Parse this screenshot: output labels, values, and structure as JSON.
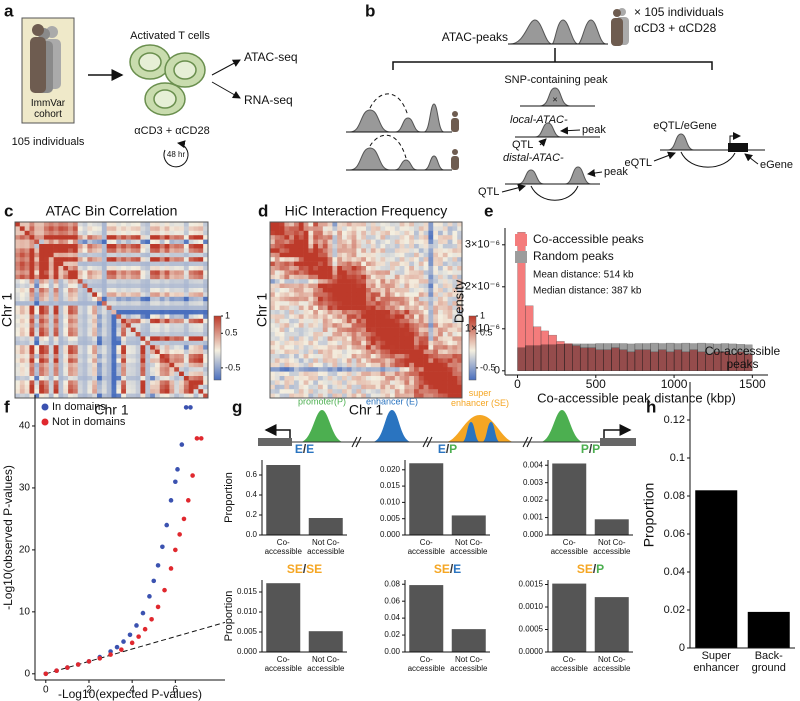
{
  "panel_labels": [
    "a",
    "b",
    "c",
    "d",
    "e",
    "f",
    "g",
    "h"
  ],
  "a": {
    "cohort": "ImmVar\ncohort",
    "individuals": "105 individuals",
    "cells": "Activated T cells",
    "atac": "ATAC-seq",
    "rna": "RNA-seq",
    "stim": "αCD3 + αCD28",
    "time": "48 hr"
  },
  "b": {
    "peaks": "ATAC-peaks",
    "individuals": "× 105 individuals",
    "stim": "αCD3 + αCD28",
    "snp": "SNP-containing peak",
    "local": "local-ATAC-",
    "local_qtl": "QTL",
    "local_peak": "peak",
    "distal": "distal-ATAC-",
    "distal_qtl": "QTL",
    "distal_peak": "peak",
    "eqtl_title": "eQTL/eGene",
    "eqtl": "eQTL",
    "egene": "eGene"
  },
  "g_diagram": {
    "promoter": "promoter(P)",
    "enhancer": "enhancer (E)",
    "super_enhancer": "super\nenhancer (SE)"
  },
  "chart_data": [
    {
      "type": "heatmap",
      "title": "ATAC Bin Correlation",
      "xlabel": "Chr 1",
      "ylabel": "Chr 1",
      "clim": [
        -0.85,
        1
      ],
      "cticks": [
        1,
        0.5,
        -0.5
      ]
    },
    {
      "type": "heatmap",
      "title": "HiC Interaction Frequency",
      "xlabel": "Chr 1",
      "ylabel": "Chr 1",
      "clim": [
        -0.85,
        1
      ],
      "cticks": [
        1,
        0.5,
        -0.5
      ]
    },
    {
      "type": "histogram",
      "xlabel": "Co-accessible peak distance (kbp)",
      "ylabel": "Density",
      "bins": [
        0,
        50,
        100,
        150,
        200,
        250,
        300,
        350,
        400,
        450,
        500,
        550,
        600,
        650,
        700,
        750,
        800,
        850,
        900,
        950,
        1000,
        1050,
        1100,
        1150,
        1200,
        1250,
        1300,
        1350,
        1400,
        1450,
        1500
      ],
      "series": [
        {
          "name": "Co-accessible peaks",
          "color": "#f47c7c",
          "values": [
            3.3e-06,
            1.55e-06,
            1.05e-06,
            9.5e-07,
            8.5e-07,
            7e-07,
            6.5e-07,
            6e-07,
            5.5e-07,
            5.5e-07,
            5e-07,
            5e-07,
            5.5e-07,
            5e-07,
            4.5e-07,
            5e-07,
            5e-07,
            4.5e-07,
            5e-07,
            4.5e-07,
            5e-07,
            4.5e-07,
            5e-07,
            4.5e-07,
            4e-07,
            4.5e-07,
            4.5e-07,
            4e-07,
            4.5e-07,
            4e-07
          ]
        },
        {
          "name": "Random peaks",
          "color": "#9c9c9c",
          "values": [
            5.5e-07,
            6e-07,
            6e-07,
            6.2e-07,
            6.2e-07,
            6.3e-07,
            6.3e-07,
            6.4e-07,
            6.4e-07,
            6.4e-07,
            6.5e-07,
            6.5e-07,
            6.5e-07,
            6.5e-07,
            6.4e-07,
            6.5e-07,
            6.5e-07,
            6.6e-07,
            6.5e-07,
            6.6e-07,
            6.5e-07,
            6.6e-07,
            6.5e-07,
            6.6e-07,
            6.5e-07,
            6.4e-07,
            6.5e-07,
            6.4e-07,
            6.3e-07,
            6.2e-07
          ]
        }
      ],
      "annotations": [
        "Mean distance: 514 kb",
        "Median distance: 387 kb"
      ],
      "xlim": [
        -80,
        1600
      ],
      "ylim": [
        -1e-07,
        3.4e-06
      ],
      "xticks": [
        0,
        500,
        1000,
        1500
      ],
      "yticks": [
        0,
        {
          "value": 1e-06,
          "label": "1×10⁻⁶"
        },
        {
          "value": 2e-06,
          "label": "2×10⁻⁶"
        },
        {
          "value": 3e-06,
          "label": "3×10⁻⁶"
        }
      ],
      "legend": "upper left"
    },
    {
      "type": "scatter",
      "xlabel": "-Log10(expected P-values)",
      "ylabel": "-Log10(observed P-values)",
      "xlim": [
        -0.5,
        8.3
      ],
      "ylim": [
        -1,
        45
      ],
      "xticks": [
        0,
        2,
        4,
        6
      ],
      "yticks": [
        0,
        10,
        20,
        30,
        40
      ],
      "diagonal": true,
      "legend": "upper left",
      "series": [
        {
          "name": "In domains",
          "color": "#3b52b0",
          "x": [
            0,
            0.5,
            1,
            1.5,
            2,
            2.5,
            3,
            3.3,
            3.6,
            3.9,
            4.2,
            4.5,
            4.8,
            5,
            5.2,
            5.4,
            5.6,
            5.8,
            6,
            6.1,
            6.3,
            6.5,
            6.7
          ],
          "y": [
            0,
            0.5,
            1,
            1.5,
            2,
            2.7,
            3.6,
            4.3,
            5.2,
            6.3,
            7.8,
            9.8,
            12.5,
            15,
            17.5,
            20.5,
            24,
            28,
            31,
            33,
            37,
            43,
            43
          ]
        },
        {
          "name": "Not in domains",
          "color": "#e0282e",
          "x": [
            0,
            0.5,
            1,
            1.5,
            2,
            2.5,
            3,
            3.5,
            4,
            4.3,
            4.6,
            4.9,
            5.2,
            5.5,
            5.8,
            6,
            6.2,
            6.4,
            6.6,
            6.8,
            7,
            7.2
          ],
          "y": [
            0,
            0.5,
            1,
            1.5,
            2,
            2.5,
            3.1,
            3.9,
            5,
            6,
            7.2,
            8.8,
            10.8,
            13.5,
            17,
            20,
            22.5,
            25,
            28,
            32,
            38,
            38
          ]
        }
      ]
    },
    {
      "type": "bar",
      "title": [
        "E",
        "/",
        "E"
      ],
      "title_colors": [
        "#2a74c0",
        "#333333",
        "#2a74c0"
      ],
      "ylabel": "Proportion",
      "categories": [
        "Co-\naccessible",
        "Not Co-\naccessible"
      ],
      "values": [
        0.7,
        0.17
      ],
      "color": "#555555",
      "ylim": [
        0,
        0.75
      ],
      "yticks": [
        {
          "value": 0,
          "label": "0.0"
        },
        0.2,
        0.4,
        0.6
      ]
    },
    {
      "type": "bar",
      "title": [
        "E",
        "/",
        "P"
      ],
      "title_colors": [
        "#2a74c0",
        "#333333",
        "#4caf50"
      ],
      "categories": [
        "Co-\naccessible",
        "Not Co-\naccessible"
      ],
      "values": [
        0.022,
        0.006
      ],
      "color": "#555555",
      "ylim": [
        0,
        0.023
      ],
      "yticks": [
        {
          "value": 0,
          "label": "0.000"
        },
        0.005,
        {
          "value": 0.01,
          "label": "0.010"
        },
        0.015,
        {
          "value": 0.02,
          "label": "0.020"
        }
      ]
    },
    {
      "type": "bar",
      "title": [
        "P",
        "/",
        "P"
      ],
      "title_colors": [
        "#4caf50",
        "#333333",
        "#4caf50"
      ],
      "categories": [
        "Co-\naccessible",
        "Not Co-\naccessible"
      ],
      "values": [
        0.0041,
        0.0009
      ],
      "color": "#555555",
      "ylim": [
        0,
        0.0043
      ],
      "yticks": [
        {
          "value": 0,
          "label": "0.000"
        },
        0.001,
        0.002,
        0.003,
        0.004
      ]
    },
    {
      "type": "bar",
      "title": [
        "SE",
        "/",
        "SE"
      ],
      "title_colors": [
        "#f5a623",
        "#333333",
        "#f5a623"
      ],
      "ylabel": "Proportion",
      "categories": [
        "Co-\naccessible",
        "Not Co-\naccessible"
      ],
      "values": [
        0.0172,
        0.0052
      ],
      "color": "#555555",
      "ylim": [
        0,
        0.018
      ],
      "yticks": [
        {
          "value": 0,
          "label": "0.000"
        },
        0.005,
        {
          "value": 0.01,
          "label": "0.010"
        },
        0.015
      ]
    },
    {
      "type": "bar",
      "title": [
        "SE",
        "/",
        "E"
      ],
      "title_colors": [
        "#f5a623",
        "#333333",
        "#2a74c0"
      ],
      "categories": [
        "Co-\naccessible",
        "Not Co-\naccessible"
      ],
      "values": [
        0.079,
        0.027
      ],
      "color": "#555555",
      "ylim": [
        0,
        0.085
      ],
      "yticks": [
        {
          "value": 0,
          "label": "0.00"
        },
        0.02,
        0.04,
        0.06,
        0.08
      ]
    },
    {
      "type": "bar",
      "title": [
        "SE",
        "/",
        "P"
      ],
      "title_colors": [
        "#f5a623",
        "#333333",
        "#4caf50"
      ],
      "categories": [
        "Co-\naccessible",
        "Not Co-\naccessible"
      ],
      "values": [
        0.00152,
        0.00122
      ],
      "color": "#555555",
      "ylim": [
        0,
        0.0016
      ],
      "yticks": [
        {
          "value": 0,
          "label": "0.0000"
        },
        0.0005,
        {
          "value": 0.001,
          "label": "0.0010"
        },
        0.0015
      ]
    },
    {
      "type": "bar",
      "title": "Co-accessible\npeaks",
      "ylabel": "Proportion",
      "categories": [
        "Super\nenhancer",
        "Back-\nground"
      ],
      "values": [
        0.083,
        0.019
      ],
      "color": "#000000",
      "ylim": [
        0,
        0.14
      ],
      "yticks": [
        0,
        0.02,
        0.04,
        0.06,
        0.08,
        0.1,
        0.12
      ]
    }
  ]
}
